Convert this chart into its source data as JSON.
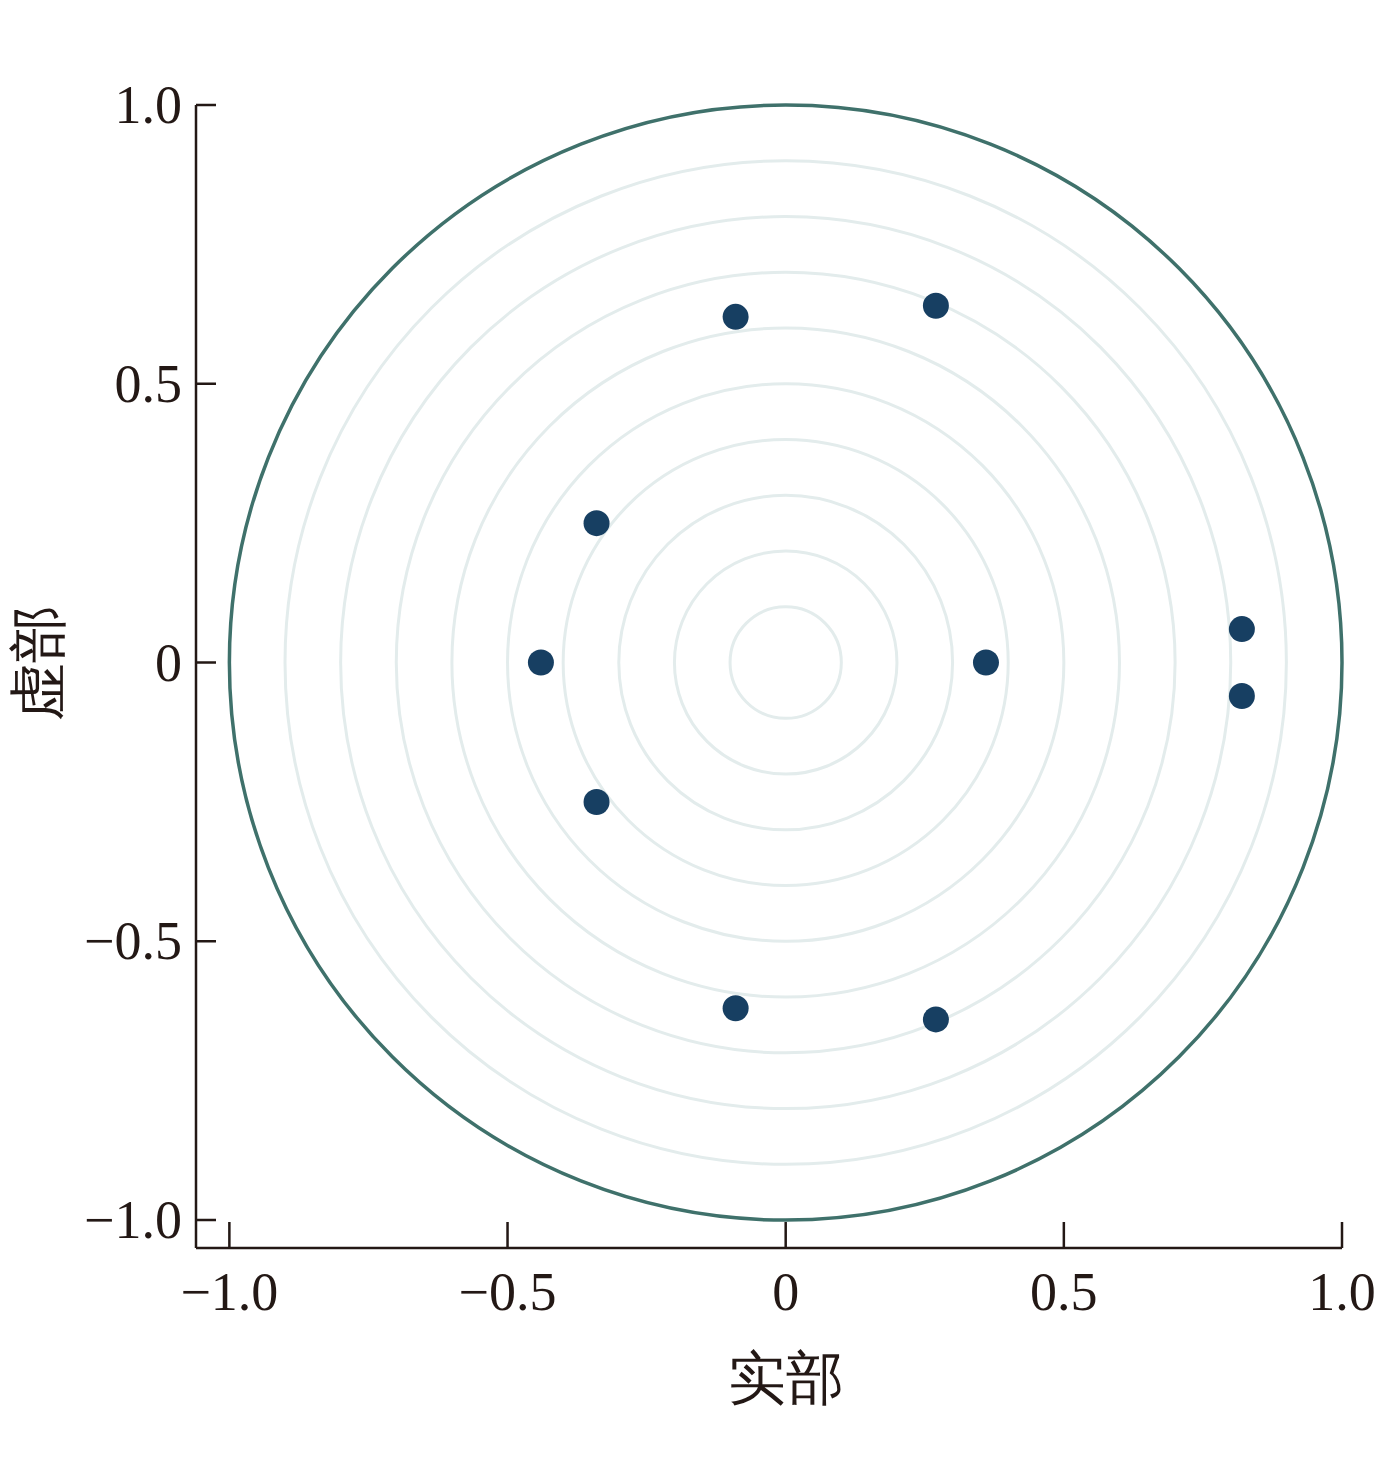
{
  "chart_data": {
    "type": "scatter",
    "xlabel": "实部",
    "ylabel": "虚部",
    "xlim": [
      -1.06,
      1.0
    ],
    "ylim": [
      -1.05,
      1.0
    ],
    "xticks": [
      {
        "value": -1,
        "label": "−1.0"
      },
      {
        "value": -0.5,
        "label": "−0.5"
      },
      0,
      0.5,
      {
        "value": 1,
        "label": "1.0"
      }
    ],
    "yticks": [
      {
        "value": -1,
        "label": "−1.0"
      },
      {
        "value": -0.5,
        "label": "−0.5"
      },
      0,
      0.5,
      {
        "value": 1,
        "label": "1.0"
      }
    ],
    "series": [
      {
        "marker": "circle",
        "color": "#173f62",
        "x": [
          -0.09,
          0.27,
          -0.34,
          -0.44,
          0.36,
          0.82,
          0.82,
          -0.34,
          -0.09,
          0.27
        ],
        "values": [
          0.62,
          0.64,
          0.25,
          0,
          0,
          0.06,
          -0.06,
          -0.25,
          -0.62,
          -0.64
        ]
      }
    ]
  }
}
